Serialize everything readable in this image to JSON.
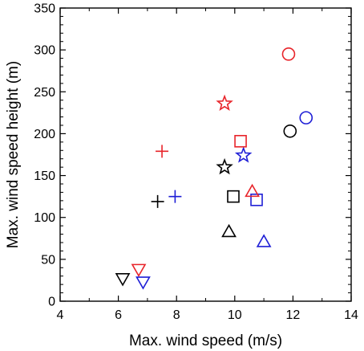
{
  "chart_data": {
    "type": "scatter",
    "title": "",
    "xlabel": "Max. wind speed (m/s)",
    "ylabel": "Max. wind speed height (m)",
    "xlim": [
      4,
      14
    ],
    "ylim": [
      0,
      350
    ],
    "xticks": [
      4,
      6,
      8,
      10,
      12,
      14
    ],
    "yticks": [
      0,
      50,
      100,
      150,
      200,
      250,
      300,
      350
    ],
    "grid": false,
    "legend": "none",
    "colors": {
      "black": "#000000",
      "red": "#e8242a",
      "blue": "#1f1fd6"
    },
    "points": [
      {
        "x": 11.85,
        "y": 295,
        "marker": "circle",
        "color": "red"
      },
      {
        "x": 12.45,
        "y": 219,
        "marker": "circle",
        "color": "blue"
      },
      {
        "x": 11.9,
        "y": 203,
        "marker": "circle",
        "color": "black"
      },
      {
        "x": 9.65,
        "y": 236,
        "marker": "star",
        "color": "red"
      },
      {
        "x": 10.3,
        "y": 174,
        "marker": "star",
        "color": "blue"
      },
      {
        "x": 9.65,
        "y": 160,
        "marker": "star",
        "color": "black"
      },
      {
        "x": 10.2,
        "y": 191,
        "marker": "square",
        "color": "red"
      },
      {
        "x": 9.95,
        "y": 125,
        "marker": "square",
        "color": "black"
      },
      {
        "x": 10.75,
        "y": 121,
        "marker": "square",
        "color": "blue"
      },
      {
        "x": 7.5,
        "y": 179,
        "marker": "plus",
        "color": "red"
      },
      {
        "x": 7.95,
        "y": 125,
        "marker": "plus",
        "color": "blue"
      },
      {
        "x": 7.35,
        "y": 119,
        "marker": "plus",
        "color": "black"
      },
      {
        "x": 10.6,
        "y": 131,
        "marker": "triangle-up",
        "color": "red"
      },
      {
        "x": 9.8,
        "y": 83,
        "marker": "triangle-up",
        "color": "black"
      },
      {
        "x": 11.0,
        "y": 71,
        "marker": "triangle-up",
        "color": "blue"
      },
      {
        "x": 6.7,
        "y": 38,
        "marker": "triangle-down",
        "color": "red"
      },
      {
        "x": 6.85,
        "y": 23,
        "marker": "triangle-down",
        "color": "blue"
      },
      {
        "x": 6.15,
        "y": 27,
        "marker": "triangle-down",
        "color": "black"
      }
    ]
  }
}
